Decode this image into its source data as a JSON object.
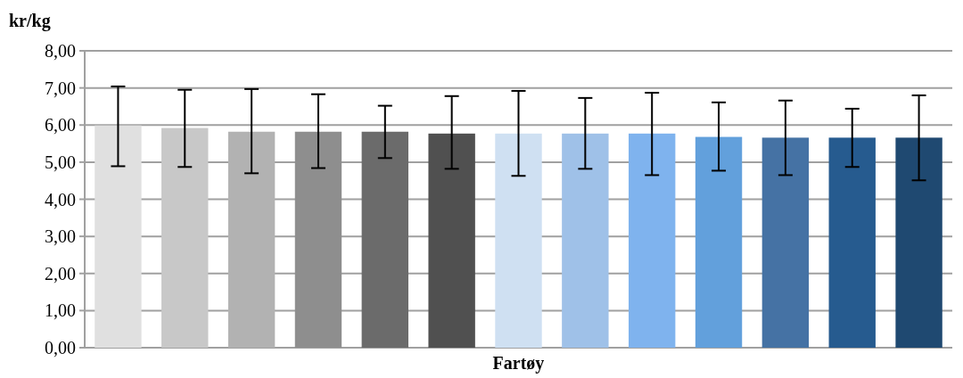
{
  "chart_data": {
    "type": "bar",
    "ylabel": "kr/kg",
    "xlabel": "Fartøy",
    "categories": [
      null,
      null,
      null,
      null,
      null,
      null,
      null,
      null,
      null,
      null,
      null,
      null,
      null
    ],
    "values": [
      5.99,
      5.92,
      5.82,
      5.82,
      5.82,
      5.77,
      5.77,
      5.77,
      5.77,
      5.68,
      5.66,
      5.66,
      5.66
    ],
    "errors": [
      [
        4.89,
        7.04
      ],
      [
        4.87,
        6.95
      ],
      [
        4.7,
        6.97
      ],
      [
        4.84,
        6.83
      ],
      [
        5.11,
        6.52
      ],
      [
        4.82,
        6.78
      ],
      [
        4.63,
        6.92
      ],
      [
        4.82,
        6.73
      ],
      [
        4.65,
        6.87
      ],
      [
        4.77,
        6.61
      ],
      [
        4.65,
        6.66
      ],
      [
        4.87,
        6.44
      ],
      [
        4.51,
        6.8
      ]
    ],
    "colors": [
      "#e0e0e0",
      "#c8c8c8",
      "#b2b2b2",
      "#8e8e8e",
      "#6b6b6b",
      "#505050",
      "#cfe0f2",
      "#9fc1e8",
      "#7fb3ee",
      "#62a0dc",
      "#4572a4",
      "#265b8f",
      "#1f4971"
    ],
    "ylim": [
      0,
      8
    ],
    "yticks": [
      {
        "value": 0,
        "label": "0,00"
      },
      {
        "value": 1,
        "label": "1,00"
      },
      {
        "value": 2,
        "label": "2,00"
      },
      {
        "value": 3,
        "label": "3,00"
      },
      {
        "value": 4,
        "label": "4,00"
      },
      {
        "value": 5,
        "label": "5,00"
      },
      {
        "value": 6,
        "label": "6,00"
      },
      {
        "value": 7,
        "label": "7,00"
      },
      {
        "value": 8,
        "label": "8,00"
      }
    ],
    "grid": "y"
  }
}
